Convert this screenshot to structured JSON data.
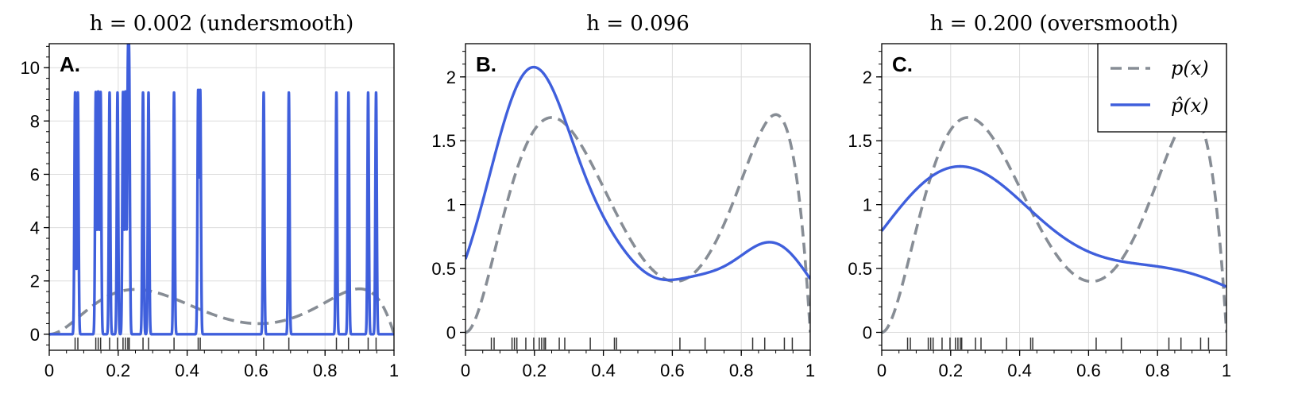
{
  "colors": {
    "true_density": "#878d95",
    "estimate": "#3f5fdc",
    "rug": "#333333"
  },
  "samples": [
    0.075,
    0.083,
    0.135,
    0.142,
    0.149,
    0.175,
    0.198,
    0.214,
    0.221,
    0.228,
    0.232,
    0.272,
    0.288,
    0.362,
    0.432,
    0.438,
    0.622,
    0.695,
    0.833,
    0.868,
    0.925,
    0.948
  ],
  "legend": {
    "true_label": "p(x)",
    "estimate_label": "p̂(x)"
  },
  "chart_data": [
    {
      "type": "line",
      "title": "h = 0.002 (undersmooth)",
      "panel_label": "A.",
      "bandwidth": 0.002,
      "xlim": [
        0,
        1
      ],
      "ylim": [
        -0.6,
        10.9
      ],
      "xticks": [
        "0",
        "0.2",
        "0.4",
        "0.6",
        "0.8",
        "1"
      ],
      "yticks": [
        "0",
        "2",
        "4",
        "6",
        "8",
        "10"
      ],
      "legend": false,
      "grid": true,
      "series": [
        {
          "name": "p(x)",
          "style": "dashed",
          "kind": "true_density"
        },
        {
          "name": "p̂(x)",
          "style": "solid",
          "kind": "kde"
        }
      ]
    },
    {
      "type": "line",
      "title": "h = 0.096",
      "panel_label": "B.",
      "bandwidth": 0.096,
      "xlim": [
        0,
        1
      ],
      "ylim": [
        -0.14,
        2.26
      ],
      "xticks": [
        "0",
        "0.2",
        "0.4",
        "0.6",
        "0.8",
        "1"
      ],
      "yticks": [
        "0",
        "0.5",
        "1",
        "1.5",
        "2"
      ],
      "legend": false,
      "grid": true,
      "series": [
        {
          "name": "p(x)",
          "style": "dashed",
          "kind": "true_density"
        },
        {
          "name": "p̂(x)",
          "style": "solid",
          "kind": "kde"
        }
      ]
    },
    {
      "type": "line",
      "title": "h = 0.200 (oversmooth)",
      "panel_label": "C.",
      "bandwidth": 0.2,
      "xlim": [
        0,
        1
      ],
      "ylim": [
        -0.14,
        2.26
      ],
      "xticks": [
        "0",
        "0.2",
        "0.4",
        "0.6",
        "0.8",
        "1"
      ],
      "yticks": [
        "0",
        "0.5",
        "1",
        "1.5",
        "2"
      ],
      "legend": true,
      "legend_position": "top-right",
      "grid": true,
      "series": [
        {
          "name": "p(x)",
          "style": "dashed",
          "kind": "true_density"
        },
        {
          "name": "p̂(x)",
          "style": "solid",
          "kind": "kde"
        }
      ]
    }
  ]
}
